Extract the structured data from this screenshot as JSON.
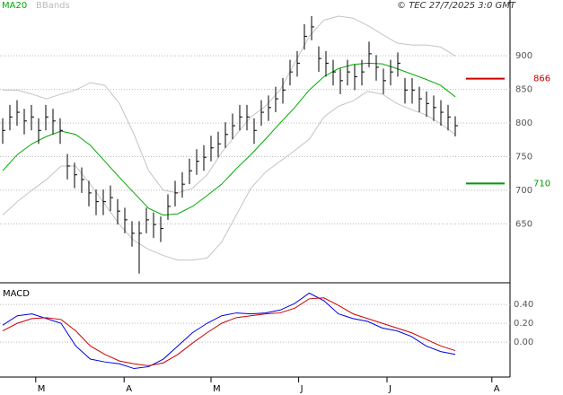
{
  "chart_data": {
    "type": "ohlc",
    "source": "© TEC 27/7/2025 3:0 GMT",
    "ylim": [
      565,
      983
    ],
    "yticks": [
      650,
      700,
      750,
      800,
      850,
      900
    ],
    "xticks": [
      {
        "value": 4.6,
        "label": "M"
      },
      {
        "value": 16.9,
        "label": "A"
      },
      {
        "value": 29,
        "label": "M"
      },
      {
        "value": 41.2,
        "label": "J"
      },
      {
        "value": 53.5,
        "label": "J"
      },
      {
        "value": 68.1,
        "label": "A"
      }
    ],
    "bars": {
      "color": "#000000",
      "high": [
        807,
        827,
        834,
        821,
        827,
        807,
        827,
        821,
        807,
        754,
        741,
        734,
        714,
        701,
        701,
        707,
        687,
        674,
        654,
        654,
        674,
        667,
        661,
        694,
        714,
        727,
        747,
        761,
        767,
        781,
        787,
        801,
        814,
        827,
        827,
        807,
        834,
        841,
        854,
        867,
        894,
        907,
        947,
        959,
        914,
        907,
        894,
        881,
        894,
        887,
        894,
        921,
        901,
        881,
        894,
        905,
        867,
        867,
        854,
        847,
        841,
        834,
        827,
        810
      ],
      "low": [
        769,
        789,
        796,
        783,
        789,
        769,
        789,
        783,
        769,
        716,
        703,
        696,
        676,
        663,
        663,
        669,
        649,
        636,
        616,
        576,
        636,
        629,
        623,
        656,
        676,
        689,
        709,
        723,
        729,
        743,
        749,
        763,
        776,
        789,
        789,
        769,
        796,
        803,
        816,
        829,
        856,
        869,
        909,
        923,
        876,
        869,
        856,
        843,
        856,
        849,
        856,
        883,
        863,
        843,
        856,
        869,
        829,
        829,
        816,
        809,
        803,
        796,
        789,
        780
      ],
      "close": [
        789,
        809,
        816,
        803,
        809,
        789,
        809,
        803,
        789,
        736,
        723,
        716,
        696,
        683,
        683,
        689,
        669,
        656,
        636,
        636,
        656,
        649,
        643,
        676,
        696,
        709,
        729,
        743,
        749,
        763,
        769,
        783,
        796,
        809,
        809,
        789,
        816,
        823,
        836,
        849,
        876,
        889,
        929,
        943,
        896,
        889,
        876,
        863,
        876,
        869,
        876,
        903,
        883,
        863,
        876,
        889,
        849,
        849,
        836,
        829,
        823,
        816,
        809,
        796
      ]
    },
    "ma20": {
      "name": "MA20",
      "color": "#00aa00",
      "values": [
        729,
        753,
        769,
        780,
        788,
        783,
        767,
        743,
        719,
        696,
        673,
        663,
        665,
        676,
        692,
        709,
        732,
        753,
        776,
        800,
        823,
        849,
        869,
        881,
        887,
        889,
        888,
        881,
        873,
        865,
        856,
        839
      ]
    },
    "bbands": {
      "name": "BBands",
      "color": "#c4c4c4",
      "upper": [
        849,
        849,
        843,
        836,
        843,
        849,
        860,
        856,
        829,
        783,
        729,
        700,
        696,
        703,
        723,
        756,
        783,
        809,
        825,
        849,
        889,
        929,
        953,
        959,
        956,
        945,
        932,
        919,
        916,
        916,
        913,
        900
      ],
      "lower": [
        663,
        683,
        700,
        716,
        736,
        736,
        709,
        679,
        649,
        625,
        612,
        603,
        596,
        596,
        599,
        623,
        663,
        703,
        727,
        743,
        759,
        776,
        809,
        825,
        833,
        847,
        843,
        829,
        820,
        812,
        799,
        783
      ]
    },
    "levels": [
      {
        "value": 866,
        "color": "#cc0000"
      },
      {
        "value": 710,
        "color": "#009900"
      }
    ],
    "macd": {
      "title": "MACD",
      "ylim": [
        -0.37,
        0.62
      ],
      "yticks": [
        {
          "value": 0,
          "label": "0.00"
        },
        {
          "value": 0.2,
          "label": "0.20"
        },
        {
          "value": 0.4,
          "label": "0.40"
        }
      ],
      "series": [
        {
          "color": "#0000dd",
          "values": [
            0.18,
            0.28,
            0.3,
            0.25,
            0.2,
            -0.04,
            -0.18,
            -0.21,
            -0.23,
            -0.28,
            -0.26,
            -0.18,
            -0.04,
            0.1,
            0.2,
            0.28,
            0.31,
            0.3,
            0.31,
            0.34,
            0.41,
            0.52,
            0.44,
            0.3,
            0.25,
            0.22,
            0.15,
            0.12,
            0.06,
            -0.04,
            -0.1,
            -0.13
          ]
        },
        {
          "color": "#cc0000",
          "values": [
            0.12,
            0.2,
            0.25,
            0.26,
            0.24,
            0.12,
            -0.04,
            -0.13,
            -0.2,
            -0.23,
            -0.25,
            -0.22,
            -0.13,
            -0.01,
            0.1,
            0.2,
            0.26,
            0.28,
            0.3,
            0.31,
            0.36,
            0.46,
            0.47,
            0.39,
            0.3,
            0.25,
            0.2,
            0.15,
            0.1,
            0.03,
            -0.04,
            -0.09
          ]
        }
      ]
    }
  }
}
